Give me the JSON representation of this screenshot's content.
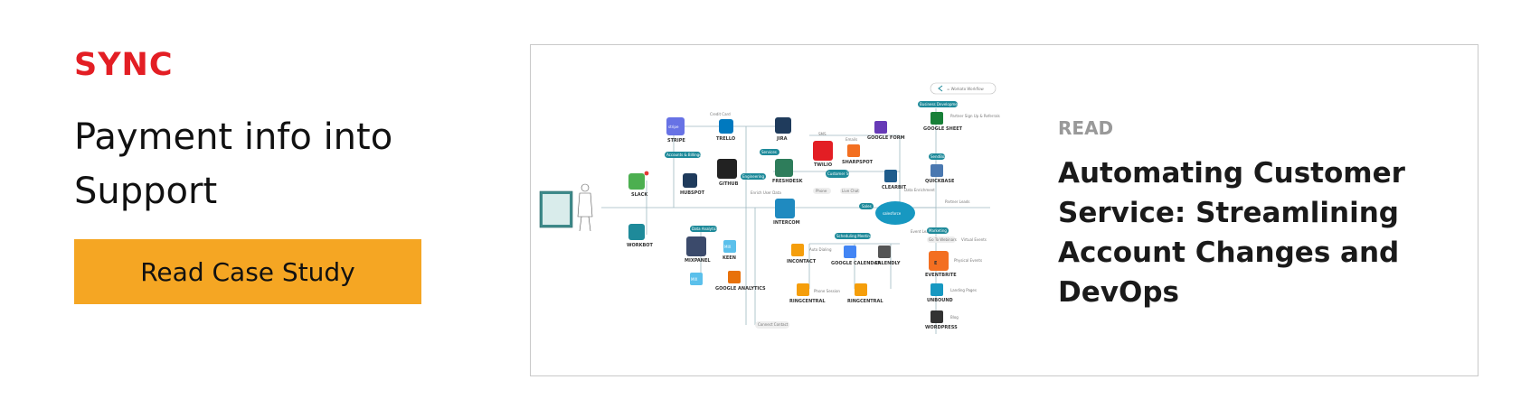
{
  "left": {
    "eyebrow": "SYNC",
    "headline_line1": "Payment info into",
    "headline_line2": "Support",
    "cta_label": "Read Case Study"
  },
  "card": {
    "eyebrow": "READ",
    "title": "Automating Customer Service: Streamlining Account Changes and DevOps"
  },
  "diagram": {
    "legend": "= Workato Workflow",
    "nodes": {
      "slack": "SLACK",
      "workbot": "WORKBOT",
      "stripe_logo": "stripe",
      "stripe": "STRIPE",
      "trello": "TRELLO",
      "jira": "JIRA",
      "github": "GITHUB",
      "hubspot": "HUBSPOT",
      "freshdesk": "FRESHDESK",
      "intercom": "INTERCOM",
      "mixpanel": "MIXPANEL",
      "mixpanel_logo": "MIX",
      "keen": "KEEN",
      "google_analytics": "GOOGLE ANALYTICS",
      "twilio": "TWILIO",
      "sharpspot": "SHARPSPOT",
      "google_form": "GOOGLE FORM",
      "clearbit": "CLEARBIT",
      "salesforce": "salesforce",
      "google_sheet": "GOOGLE SHEET",
      "quickbase": "QUICKBASE",
      "incontact": "INCONTACT",
      "google_calendar": "GOOGLE CALENDAR",
      "calendly": "CALENDLY",
      "ringcentral": "RINGCENTRAL",
      "eventbrite": "EVENTBRITE",
      "unbound": "UNBOUND",
      "wordpress": "WORDPRESS",
      "eventbrite_letter": "E"
    },
    "tags": {
      "accounts_billing": "Accounts & Billings",
      "services": "Services",
      "engineering": "Engineering",
      "data_analytics": "Data Analytics",
      "customer_success": "Customer Success",
      "sales": "Sales",
      "scheduling_meetings": "Scheduling Meetings",
      "business_development": "Business Development",
      "sendbox": "SendBox",
      "marketing": "Marketing"
    },
    "labels": {
      "credit_card": "Credit Card",
      "sms": "SMS",
      "emails": "Emails",
      "phone": "Phone",
      "live_chat": "Live Chat",
      "enrich_user_data": "Enrich User Data",
      "data_enrichment": "Data Enrichment",
      "partner_signup": "Partner Sign Up & Referrals",
      "partner_leads": "Partner Leads",
      "auto_dialing": "Auto Dialing",
      "phone_session": "Phone Session",
      "event_leads": "Event Leads",
      "go_to_webinars": "Go To Webinars",
      "virtual_events": "Virtual Events",
      "physical_events": "Physical Events",
      "landing_pages": "Landing Pages",
      "blog": "Blog",
      "connect_contact": "Connect Contact"
    }
  }
}
